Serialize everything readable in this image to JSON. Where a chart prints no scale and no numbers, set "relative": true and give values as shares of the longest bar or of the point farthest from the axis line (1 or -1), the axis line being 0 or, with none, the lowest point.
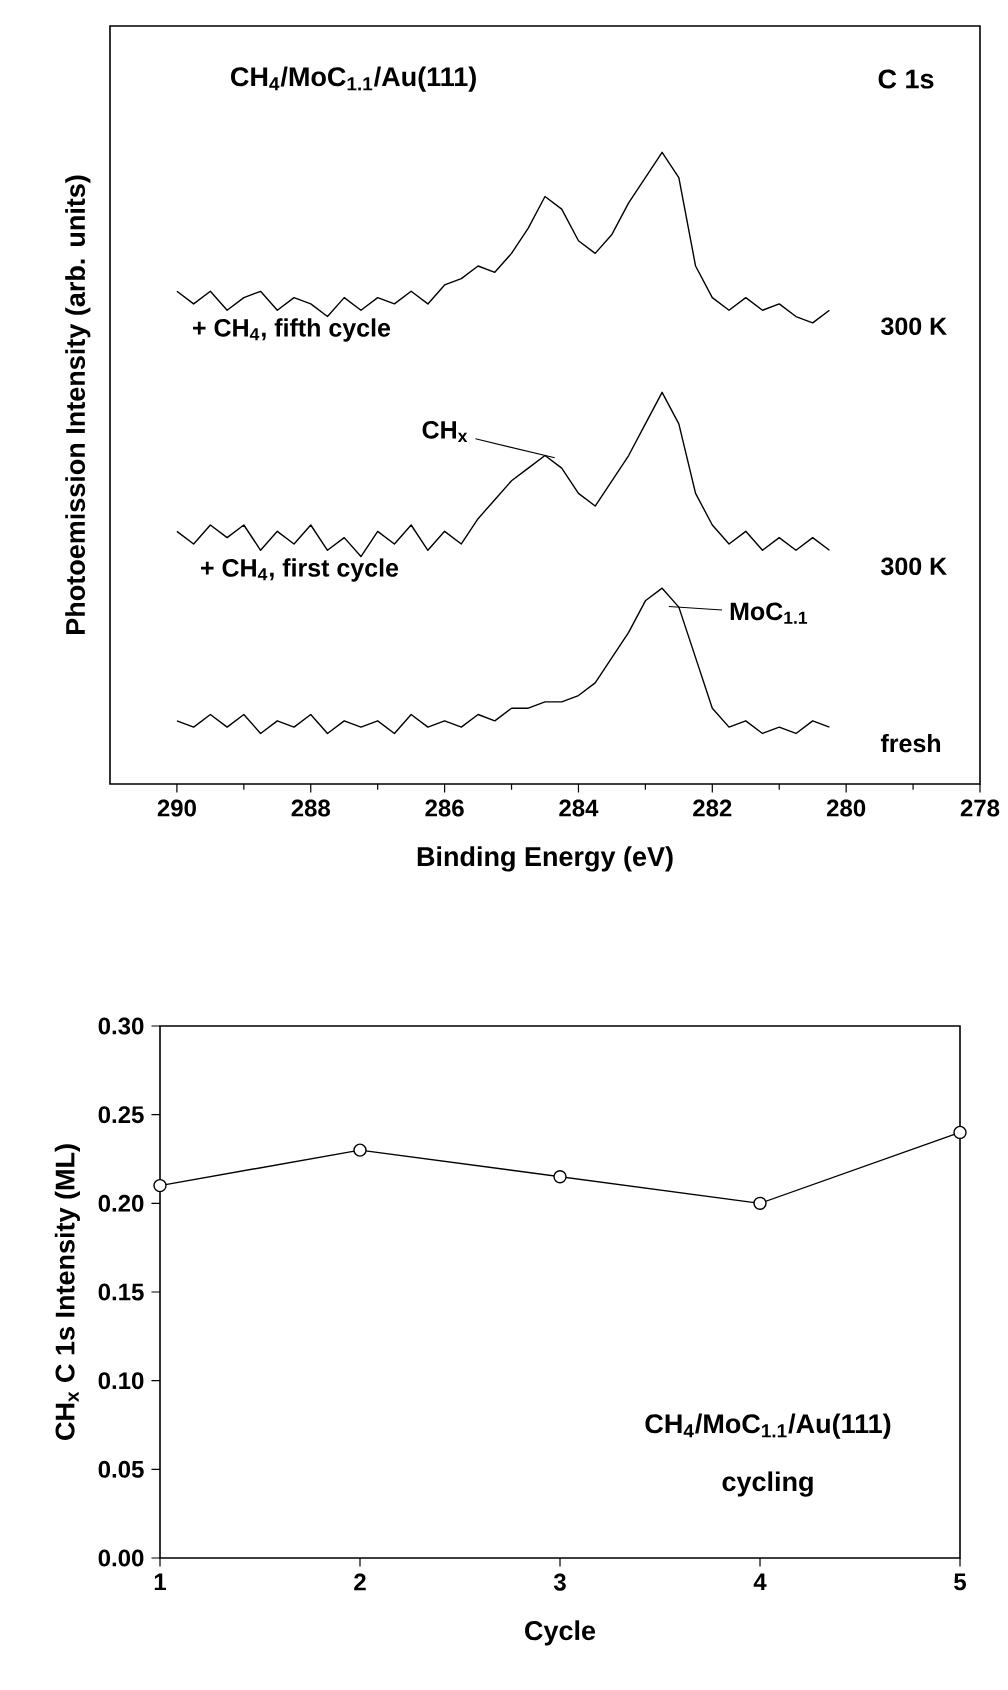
{
  "chart_data": [
    {
      "type": "line",
      "title": "CH$_{4}$/MoC$_{1.1}$/Au(111)",
      "subtitle": "C 1s",
      "xlabel": "Binding Energy (eV)",
      "ylabel": "Photoemission Intensity (arb. units)",
      "relative": true,
      "x": [
        290,
        289.75,
        289.5,
        289.25,
        289,
        288.75,
        288.5,
        288.25,
        288,
        287.75,
        287.5,
        287.25,
        287,
        286.75,
        286.5,
        286.25,
        286,
        285.75,
        285.5,
        285.25,
        285,
        284.75,
        284.5,
        284.25,
        284,
        283.75,
        283.5,
        283.25,
        283,
        282.75,
        282.5,
        282.25,
        282,
        281.75,
        281.5,
        281.25,
        281,
        280.75,
        280.5,
        280.25
      ],
      "xlim": [
        291,
        278
      ],
      "xticks": [
        290,
        288,
        286,
        284,
        282,
        280,
        278
      ],
      "series": [
        {
          "name": "300 K",
          "color": "#000000",
          "values": [
            0.78,
            0.76,
            0.78,
            0.75,
            0.77,
            0.78,
            0.75,
            0.77,
            0.76,
            0.74,
            0.77,
            0.75,
            0.77,
            0.76,
            0.78,
            0.76,
            0.79,
            0.8,
            0.82,
            0.81,
            0.84,
            0.88,
            0.93,
            0.91,
            0.86,
            0.84,
            0.87,
            0.92,
            0.96,
            1.0,
            0.96,
            0.82,
            0.77,
            0.75,
            0.77,
            0.75,
            0.76,
            0.74,
            0.73,
            0.75
          ]
        },
        {
          "name": "300 K",
          "color": "#000000",
          "values": [
            0.4,
            0.38,
            0.41,
            0.39,
            0.41,
            0.37,
            0.4,
            0.38,
            0.41,
            0.37,
            0.39,
            0.36,
            0.4,
            0.38,
            0.41,
            0.37,
            0.4,
            0.38,
            0.42,
            0.45,
            0.48,
            0.5,
            0.52,
            0.5,
            0.46,
            0.44,
            0.48,
            0.52,
            0.57,
            0.62,
            0.57,
            0.46,
            0.41,
            0.38,
            0.4,
            0.37,
            0.39,
            0.37,
            0.39,
            0.37
          ]
        },
        {
          "name": "fresh",
          "color": "#000000",
          "values": [
            0.1,
            0.09,
            0.11,
            0.09,
            0.11,
            0.08,
            0.1,
            0.09,
            0.11,
            0.08,
            0.1,
            0.09,
            0.1,
            0.08,
            0.11,
            0.09,
            0.1,
            0.09,
            0.11,
            0.1,
            0.12,
            0.12,
            0.13,
            0.13,
            0.14,
            0.16,
            0.2,
            0.24,
            0.29,
            0.31,
            0.28,
            0.2,
            0.12,
            0.09,
            0.1,
            0.08,
            0.09,
            0.08,
            0.1,
            0.09
          ]
        }
      ],
      "annotations": [
        {
          "text": "+ CH$_{4}$, fifth cycle",
          "x": 290,
          "y": 0.78
        },
        {
          "text": "+ CH$_{4}$, first cycle",
          "x": 290,
          "y": 0.4
        },
        {
          "text": "CH$_{x}$",
          "x": 284.5,
          "y": 0.52
        },
        {
          "text": "MoC$_{1.1}$",
          "x": 282.5,
          "y": 0.28
        }
      ],
      "marker": "none",
      "line_style": "solid",
      "grid": false,
      "legend": false
    },
    {
      "type": "line",
      "xlabel": "Cycle",
      "ylabel": "CH$_{x}$ C 1s Intensity (ML)",
      "x": [
        1,
        2,
        3,
        4,
        5
      ],
      "xlim": [
        1,
        5
      ],
      "xticks": [
        1,
        2,
        3,
        4,
        5
      ],
      "ylim": [
        0,
        0.3
      ],
      "yticks": [
        {
          "value": 0,
          "label": "0.00"
        },
        {
          "value": 0.05,
          "label": "0.05"
        },
        {
          "value": 0.1,
          "label": "0.10"
        },
        {
          "value": 0.15,
          "label": "0.15"
        },
        {
          "value": 0.2,
          "label": "0.20"
        },
        {
          "value": 0.25,
          "label": "0.25"
        },
        {
          "value": 0.3,
          "label": "0.30"
        }
      ],
      "series": [
        {
          "color": "#000000",
          "values": [
            0.21,
            0.23,
            0.215,
            0.2,
            0.24
          ]
        }
      ],
      "annotations": [
        "CH$_{4}$/MoC$_{1.1}$/Au(111)",
        "cycling"
      ],
      "marker": "circle",
      "line_style": "solid",
      "grid": false,
      "legend": false
    }
  ]
}
